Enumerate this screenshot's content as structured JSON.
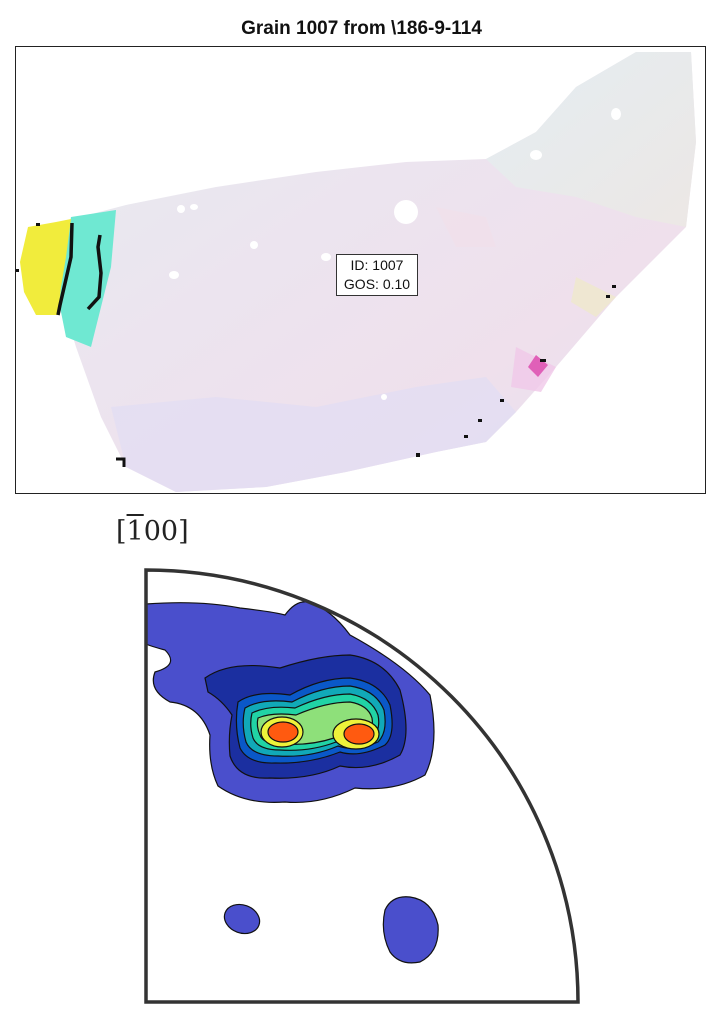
{
  "map": {
    "title": "Grain 1007 from \\186-9-114",
    "info": {
      "id_label": "ID: 1007",
      "gos_label": "GOS: 0.10"
    }
  },
  "pole_figure": {
    "label_prefix": "[",
    "label_bar_digit": "1",
    "label_rest": "00]",
    "levels": 8,
    "colors": [
      "#4a4fcc",
      "#1b2fa0",
      "#0a58c8",
      "#11a9b8",
      "#21d3a5",
      "#8ee07a",
      "#eef23a",
      "#ff5a10"
    ]
  }
}
